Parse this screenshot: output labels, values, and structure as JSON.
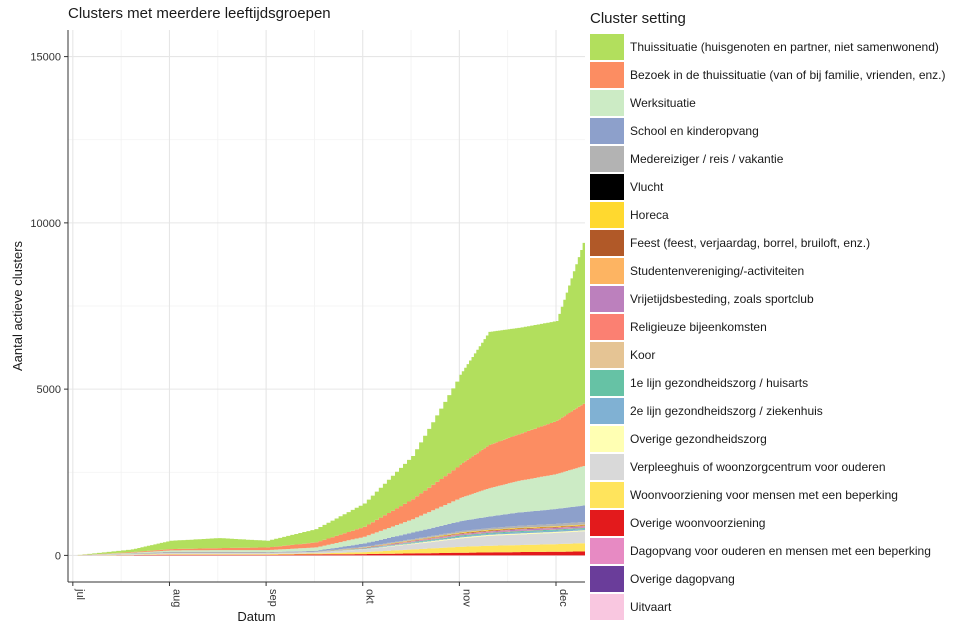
{
  "chart_data": {
    "type": "area",
    "title": "Clusters met meerdere leeftijdsgroepen",
    "xlabel": "Datum",
    "ylabel": "Aantal actieve clusters",
    "x_ticks": [
      "jul",
      "aug",
      "sep",
      "okt",
      "nov",
      "dec"
    ],
    "y_ticks": [
      "0",
      "5000",
      "10000",
      "15000"
    ],
    "ylim": [
      -800,
      15800
    ],
    "grid": true,
    "legend_title": "Cluster setting",
    "legend_position": "right",
    "x": [
      0,
      0.6,
      1.0,
      1.5,
      2.0,
      2.5,
      3.0,
      3.5,
      4.0,
      4.3,
      4.6,
      5.0,
      5.3
    ],
    "series": [
      {
        "name": "Uitvaart",
        "color": "#f9c7e0",
        "values": [
          0,
          0,
          0,
          0,
          0,
          0,
          0,
          0,
          0,
          0,
          0,
          0,
          0
        ]
      },
      {
        "name": "Overige dagopvang",
        "color": "#6a3d9a",
        "values": [
          0,
          0,
          0,
          0,
          0,
          0,
          0,
          0,
          0,
          0,
          0,
          0,
          0
        ]
      },
      {
        "name": "Dagopvang voor ouderen en mensen met een beperking",
        "color": "#e78ac3",
        "values": [
          0,
          0,
          0,
          0,
          0,
          0,
          0,
          0,
          0,
          0,
          0,
          0,
          0
        ]
      },
      {
        "name": "Overige woonvoorziening",
        "color": "#e31a1c",
        "values": [
          0,
          10,
          20,
          20,
          20,
          30,
          40,
          60,
          80,
          90,
          100,
          110,
          120
        ]
      },
      {
        "name": "Woonvoorziening voor mensen met een beperking",
        "color": "#ffe45c",
        "values": [
          0,
          10,
          20,
          20,
          20,
          30,
          60,
          120,
          180,
          200,
          210,
          230,
          250
        ]
      },
      {
        "name": "Verpleeghuis of woonzorgcentrum voor ouderen",
        "color": "#d9d9d9",
        "values": [
          0,
          20,
          30,
          30,
          30,
          40,
          80,
          160,
          250,
          300,
          320,
          340,
          360
        ]
      },
      {
        "name": "Overige gezondheidszorg",
        "color": "#ffffb3",
        "values": [
          0,
          0,
          0,
          0,
          0,
          0,
          10,
          20,
          30,
          30,
          30,
          30,
          30
        ]
      },
      {
        "name": "2e lijn gezondheidszorg / ziekenhuis",
        "color": "#80b1d3",
        "values": [
          0,
          0,
          0,
          0,
          0,
          0,
          10,
          20,
          30,
          30,
          40,
          40,
          40
        ]
      },
      {
        "name": "1e lijn gezondheidszorg / huisarts",
        "color": "#66c2a5",
        "values": [
          0,
          0,
          0,
          0,
          0,
          0,
          10,
          20,
          30,
          30,
          30,
          30,
          30
        ]
      },
      {
        "name": "Koor",
        "color": "#e5c494",
        "values": [
          0,
          0,
          0,
          0,
          0,
          0,
          0,
          0,
          0,
          0,
          0,
          0,
          0
        ]
      },
      {
        "name": "Religieuze bijeenkomsten",
        "color": "#fb8072",
        "values": [
          0,
          0,
          0,
          0,
          0,
          0,
          0,
          10,
          10,
          10,
          10,
          10,
          10
        ]
      },
      {
        "name": "Vrijetijdsbesteding, zoals sportclub",
        "color": "#bc80bd",
        "values": [
          0,
          0,
          0,
          0,
          0,
          0,
          10,
          20,
          30,
          30,
          40,
          40,
          40
        ]
      },
      {
        "name": "Studentenvereniging/-activiteiten",
        "color": "#fdb462",
        "values": [
          0,
          0,
          0,
          0,
          0,
          0,
          0,
          10,
          10,
          10,
          10,
          10,
          10
        ]
      },
      {
        "name": "Feest (feest, verjaardag, borrel, bruiloft, enz.)",
        "color": "#b15928",
        "values": [
          0,
          0,
          0,
          0,
          0,
          0,
          10,
          10,
          20,
          20,
          20,
          20,
          20
        ]
      },
      {
        "name": "Horeca",
        "color": "#ffd92f",
        "values": [
          0,
          0,
          0,
          0,
          0,
          0,
          10,
          10,
          20,
          20,
          20,
          20,
          20
        ]
      },
      {
        "name": "Vlucht",
        "color": "#000000",
        "values": [
          0,
          0,
          0,
          0,
          0,
          0,
          0,
          0,
          0,
          0,
          0,
          0,
          0
        ]
      },
      {
        "name": "Medereiziger / reis / vakantie",
        "color": "#b3b3b3",
        "values": [
          0,
          20,
          40,
          40,
          30,
          20,
          20,
          30,
          40,
          50,
          60,
          70,
          80
        ]
      },
      {
        "name": "School en kinderopvang",
        "color": "#8da0cb",
        "values": [
          0,
          0,
          0,
          0,
          0,
          20,
          100,
          200,
          300,
          350,
          400,
          450,
          500
        ]
      },
      {
        "name": "Werksituatie",
        "color": "#ccebc5",
        "values": [
          0,
          20,
          40,
          50,
          60,
          100,
          200,
          400,
          700,
          850,
          950,
          1050,
          1200
        ]
      },
      {
        "name": "Bezoek in de thuissituatie (van of bij familie, vrienden, enz.)",
        "color": "#fc8d62",
        "values": [
          0,
          20,
          40,
          60,
          80,
          150,
          300,
          600,
          1000,
          1300,
          1400,
          1600,
          1900
        ]
      },
      {
        "name": "Thuissituatie (huisgenoten en partner, niet samenwonend)",
        "color": "#b2df5d",
        "values": [
          0,
          80,
          250,
          300,
          200,
          400,
          700,
          1300,
          2700,
          3400,
          3200,
          3000,
          5000
        ]
      }
    ]
  }
}
